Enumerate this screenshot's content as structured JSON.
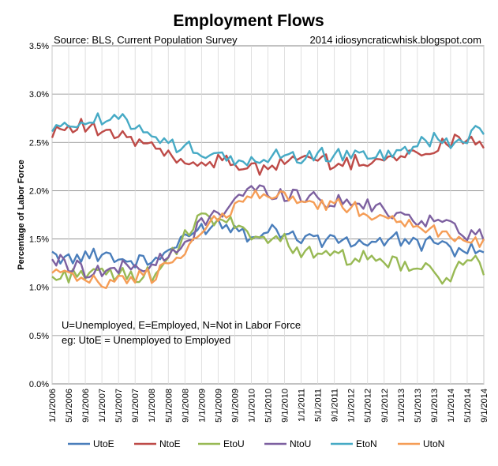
{
  "chart_data": {
    "type": "line",
    "title": "Employment Flows",
    "source_note": "Source: BLS, Current Population Survey",
    "credit_note": "2014  idiosyncraticwhisk.blogspot.com",
    "ylabel": "Percentage of Labor Force",
    "xlabel": "",
    "ylim": [
      0,
      3.5
    ],
    "y_ticks": [
      "0.0%",
      "0.5%",
      "1.0%",
      "1.5%",
      "2.0%",
      "2.5%",
      "3.0%",
      "3.5%"
    ],
    "x_start": "2006-01",
    "x_end": "2014-09",
    "x_ticks": [
      "1/1/2006",
      "5/1/2006",
      "9/1/2006",
      "1/1/2007",
      "5/1/2007",
      "9/1/2007",
      "1/1/2008",
      "5/1/2008",
      "9/1/2008",
      "1/1/2009",
      "5/1/2009",
      "9/1/2009",
      "1/1/2010",
      "5/1/2010",
      "9/1/2010",
      "1/1/2011",
      "5/1/2011",
      "9/1/2011",
      "1/1/2012",
      "5/1/2012",
      "9/1/2012",
      "1/1/2013",
      "5/1/2013",
      "9/1/2013",
      "1/1/2014",
      "5/1/2014",
      "9/1/2014"
    ],
    "annotation_line1": "U=Unemployed, E=Employed, N=Not in Labor Force",
    "annotation_line2": "eg: UtoE = Unemployed to Employed",
    "grid": true,
    "legend_position": "bottom",
    "series": [
      {
        "name": "UtoE",
        "color": "#4a7ebb",
        "knots": [
          [
            0,
            1.33
          ],
          [
            6,
            1.32
          ],
          [
            12,
            1.34
          ],
          [
            18,
            1.28
          ],
          [
            24,
            1.27
          ],
          [
            30,
            1.42
          ],
          [
            36,
            1.62
          ],
          [
            40,
            1.65
          ],
          [
            44,
            1.62
          ],
          [
            48,
            1.55
          ],
          [
            54,
            1.6
          ],
          [
            60,
            1.52
          ],
          [
            66,
            1.5
          ],
          [
            72,
            1.47
          ],
          [
            78,
            1.45
          ],
          [
            84,
            1.48
          ],
          [
            90,
            1.45
          ],
          [
            96,
            1.42
          ],
          [
            100,
            1.4
          ],
          [
            104,
            1.36
          ]
        ]
      },
      {
        "name": "NtoE",
        "color": "#be4b48",
        "knots": [
          [
            0,
            2.62
          ],
          [
            6,
            2.7
          ],
          [
            12,
            2.6
          ],
          [
            18,
            2.55
          ],
          [
            24,
            2.45
          ],
          [
            28,
            2.35
          ],
          [
            32,
            2.3
          ],
          [
            36,
            2.3
          ],
          [
            42,
            2.3
          ],
          [
            48,
            2.25
          ],
          [
            52,
            2.2
          ],
          [
            56,
            2.3
          ],
          [
            62,
            2.35
          ],
          [
            66,
            2.3
          ],
          [
            72,
            2.28
          ],
          [
            78,
            2.33
          ],
          [
            84,
            2.35
          ],
          [
            90,
            2.4
          ],
          [
            96,
            2.5
          ],
          [
            100,
            2.58
          ],
          [
            104,
            2.45
          ]
        ]
      },
      {
        "name": "EtoU",
        "color": "#98b954",
        "knots": [
          [
            0,
            1.1
          ],
          [
            6,
            1.15
          ],
          [
            12,
            1.15
          ],
          [
            18,
            1.12
          ],
          [
            24,
            1.12
          ],
          [
            28,
            1.28
          ],
          [
            32,
            1.5
          ],
          [
            36,
            1.72
          ],
          [
            40,
            1.7
          ],
          [
            44,
            1.65
          ],
          [
            48,
            1.55
          ],
          [
            54,
            1.5
          ],
          [
            60,
            1.4
          ],
          [
            66,
            1.33
          ],
          [
            72,
            1.3
          ],
          [
            78,
            1.28
          ],
          [
            84,
            1.22
          ],
          [
            90,
            1.18
          ],
          [
            94,
            1.1
          ],
          [
            98,
            1.2
          ],
          [
            102,
            1.28
          ],
          [
            104,
            1.1
          ]
        ]
      },
      {
        "name": "NtoU",
        "color": "#7d60a0",
        "knots": [
          [
            0,
            1.28
          ],
          [
            6,
            1.22
          ],
          [
            12,
            1.15
          ],
          [
            18,
            1.2
          ],
          [
            24,
            1.22
          ],
          [
            30,
            1.35
          ],
          [
            36,
            1.65
          ],
          [
            42,
            1.85
          ],
          [
            48,
            2.0
          ],
          [
            52,
            1.98
          ],
          [
            56,
            1.95
          ],
          [
            60,
            1.95
          ],
          [
            66,
            1.9
          ],
          [
            72,
            1.88
          ],
          [
            78,
            1.82
          ],
          [
            84,
            1.75
          ],
          [
            90,
            1.7
          ],
          [
            96,
            1.65
          ],
          [
            100,
            1.55
          ],
          [
            104,
            1.5
          ]
        ]
      },
      {
        "name": "EtoN",
        "color": "#46aac5",
        "knots": [
          [
            0,
            2.6
          ],
          [
            6,
            2.72
          ],
          [
            12,
            2.72
          ],
          [
            18,
            2.75
          ],
          [
            24,
            2.6
          ],
          [
            30,
            2.45
          ],
          [
            36,
            2.4
          ],
          [
            42,
            2.32
          ],
          [
            48,
            2.3
          ],
          [
            54,
            2.35
          ],
          [
            60,
            2.33
          ],
          [
            66,
            2.38
          ],
          [
            72,
            2.35
          ],
          [
            78,
            2.38
          ],
          [
            84,
            2.4
          ],
          [
            88,
            2.5
          ],
          [
            92,
            2.55
          ],
          [
            96,
            2.5
          ],
          [
            100,
            2.55
          ],
          [
            104,
            2.65
          ]
        ]
      },
      {
        "name": "UtoN",
        "color": "#f59d56",
        "knots": [
          [
            0,
            1.15
          ],
          [
            6,
            1.1
          ],
          [
            12,
            1.05
          ],
          [
            18,
            1.08
          ],
          [
            24,
            1.12
          ],
          [
            30,
            1.3
          ],
          [
            36,
            1.55
          ],
          [
            42,
            1.8
          ],
          [
            48,
            1.95
          ],
          [
            52,
            1.98
          ],
          [
            56,
            1.93
          ],
          [
            60,
            1.9
          ],
          [
            66,
            1.85
          ],
          [
            72,
            1.82
          ],
          [
            78,
            1.75
          ],
          [
            84,
            1.7
          ],
          [
            90,
            1.62
          ],
          [
            96,
            1.55
          ],
          [
            100,
            1.5
          ],
          [
            104,
            1.45
          ]
        ]
      }
    ]
  }
}
